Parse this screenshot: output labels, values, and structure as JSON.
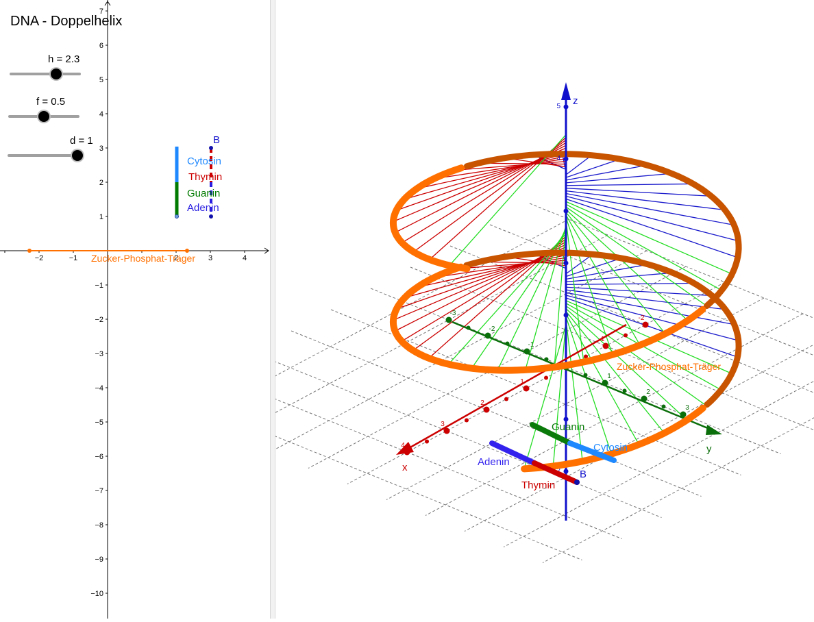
{
  "title": "DNA - Doppelhelix",
  "sliders": [
    {
      "name": "h",
      "label": "h = 2.3",
      "value": 2.3
    },
    {
      "name": "f",
      "label": "f = 0.5",
      "value": 0.5
    },
    {
      "name": "d",
      "label": "d = 1",
      "value": 1
    }
  ],
  "graphics2d": {
    "x_ticks": [
      "−2",
      "−1",
      "2",
      "3",
      "4"
    ],
    "y_ticks": [
      "7",
      "6",
      "5",
      "4",
      "3",
      "2",
      "1",
      "−1",
      "−2",
      "−3",
      "−4",
      "−5",
      "−6",
      "−7",
      "−8",
      "−9",
      "−10"
    ],
    "legend": {
      "cytosin": "Cytosin",
      "thymin": "Thymin",
      "guanin": "Guanin",
      "adenin": "Adenin"
    },
    "point_b": "B",
    "carrier_label": "Zucker-Phosphat-Träger"
  },
  "graphics3d": {
    "axis_z": "z",
    "axis_x": "x",
    "axis_y": "y",
    "z_ticks": [
      "5",
      "4",
      "-2"
    ],
    "x_ticks": [
      "1",
      "2",
      "3",
      "4",
      "-1",
      "-2"
    ],
    "y_ticks": [
      "-3",
      "-2",
      "-1",
      "1",
      "2",
      "3"
    ],
    "carrier_label": "Zucker-Phosphat-Träger",
    "bars": {
      "guanin": "Guanin",
      "cytosin": "Cytosin",
      "adenin": "Adenin",
      "thymin": "Thymin",
      "point_b": "B"
    }
  },
  "colors": {
    "cytosin": "#1e88ff",
    "thymin": "#cc0000",
    "guanin": "#007a00",
    "adenin": "#2a1fe0",
    "carrier": "#ff7000",
    "helix_rungs_a": "#1a1acc",
    "helix_rungs_b": "#22dd22",
    "x_axis": "#cc0000",
    "y_axis": "#0a6e0a",
    "z_axis": "#1010cc"
  }
}
